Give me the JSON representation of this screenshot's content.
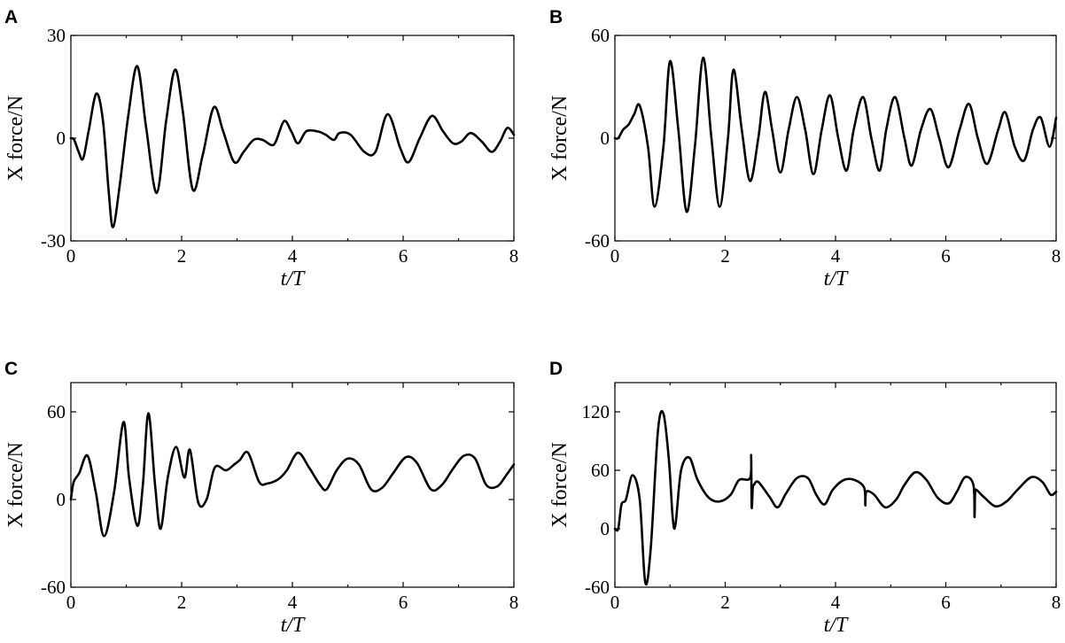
{
  "chart_data": [
    {
      "panel": "A",
      "type": "line",
      "xlabel": "t/T",
      "ylabel": "X force/N",
      "xlim": [
        0,
        8
      ],
      "ylim": [
        -30,
        30
      ],
      "xticks": [
        "0",
        "2",
        "4",
        "6",
        "8"
      ],
      "yticks": [
        "-30",
        "0",
        "30"
      ],
      "series": [
        {
          "x": [
            0,
            0.06,
            0.14,
            0.22,
            0.32,
            0.46,
            0.58,
            0.68,
            0.76,
            0.88,
            1.04,
            1.2,
            1.36,
            1.55,
            1.72,
            1.88,
            2.02,
            2.2,
            2.38,
            2.58,
            2.75,
            2.95,
            3.12,
            3.3,
            3.46,
            3.62,
            3.7,
            3.85,
            3.98,
            4.1,
            4.25,
            4.45,
            4.6,
            4.75,
            4.85,
            5.05,
            5.3,
            5.5,
            5.72,
            5.95,
            6.1,
            6.3,
            6.52,
            6.72,
            6.9,
            7.05,
            7.22,
            7.42,
            7.6,
            7.75,
            7.88,
            8.0
          ],
          "y": [
            0,
            -0.5,
            -4,
            -6,
            2,
            13,
            5,
            -15,
            -26,
            -14,
            7,
            21,
            3,
            -16,
            5,
            20,
            8,
            -15,
            -5,
            9,
            2,
            -7,
            -4,
            -0.5,
            -0.5,
            -2,
            -1,
            5,
            2,
            -1.5,
            2,
            2,
            1,
            -0.5,
            1.5,
            1,
            -4,
            -4,
            7,
            -3,
            -7,
            0,
            6.5,
            2,
            -1.5,
            -1,
            1.5,
            -1,
            -4,
            -1,
            3,
            1
          ]
        }
      ]
    },
    {
      "panel": "B",
      "type": "line",
      "xlabel": "t/T",
      "ylabel": "X force/N",
      "xlim": [
        0,
        8
      ],
      "ylim": [
        -60,
        60
      ],
      "xticks": [
        "0",
        "2",
        "4",
        "6",
        "8"
      ],
      "yticks": [
        "-60",
        "0",
        "60"
      ],
      "series": [
        {
          "x": [
            0,
            0.06,
            0.15,
            0.25,
            0.35,
            0.45,
            0.6,
            0.72,
            0.88,
            1.0,
            1.15,
            1.3,
            1.45,
            1.6,
            1.75,
            1.9,
            2.05,
            2.15,
            2.3,
            2.45,
            2.6,
            2.72,
            2.85,
            3.0,
            3.15,
            3.3,
            3.45,
            3.6,
            3.75,
            3.9,
            4.05,
            4.2,
            4.33,
            4.5,
            4.65,
            4.8,
            4.92,
            5.08,
            5.25,
            5.38,
            5.55,
            5.72,
            5.88,
            6.05,
            6.25,
            6.42,
            6.58,
            6.75,
            6.95,
            7.08,
            7.25,
            7.42,
            7.58,
            7.72,
            7.88,
            8.0
          ],
          "y": [
            0,
            0,
            5,
            8,
            14,
            19,
            -5,
            -40,
            -5,
            45,
            5,
            -43,
            -5,
            47,
            0,
            -40,
            0,
            40,
            5,
            -25,
            0,
            27,
            5,
            -20,
            5,
            24,
            5,
            -21,
            5,
            25,
            0,
            -19,
            5,
            24,
            0,
            -19,
            5,
            24,
            0,
            -16,
            5,
            17,
            0,
            -17,
            5,
            20,
            0,
            -15,
            5,
            15,
            -5,
            -13,
            5,
            12,
            -5,
            12
          ]
        }
      ]
    },
    {
      "panel": "C",
      "type": "line",
      "xlabel": "t/T",
      "ylabel": "X force/N",
      "xlim": [
        0,
        8
      ],
      "ylim": [
        -60,
        80
      ],
      "xticks": [
        "0",
        "2",
        "4",
        "6",
        "8"
      ],
      "yticks": [
        "-60",
        "0",
        "60"
      ],
      "series": [
        {
          "x": [
            0,
            0.05,
            0.15,
            0.3,
            0.45,
            0.6,
            0.78,
            0.95,
            1.05,
            1.2,
            1.3,
            1.4,
            1.52,
            1.62,
            1.75,
            1.9,
            2.05,
            2.15,
            2.3,
            2.45,
            2.6,
            2.8,
            2.95,
            3.05,
            3.2,
            3.4,
            3.55,
            3.75,
            3.9,
            4.1,
            4.3,
            4.5,
            4.62,
            4.8,
            5.0,
            5.2,
            5.42,
            5.62,
            5.82,
            6.05,
            6.25,
            6.5,
            6.7,
            6.9,
            7.1,
            7.3,
            7.5,
            7.7,
            7.85,
            8.0
          ],
          "y": [
            0,
            12,
            18,
            30,
            5,
            -25,
            5,
            53,
            15,
            -18,
            10,
            59,
            10,
            -20,
            15,
            36,
            15,
            34,
            -2,
            0,
            22,
            20,
            24,
            27,
            32,
            12,
            11,
            14,
            20,
            32,
            22,
            10,
            7,
            20,
            28,
            24,
            7,
            8,
            18,
            29,
            25,
            7,
            10,
            21,
            30,
            28,
            10,
            9,
            16,
            24
          ]
        }
      ]
    },
    {
      "panel": "D",
      "type": "line",
      "xlabel": "t/T",
      "ylabel": "X force/N",
      "xlim": [
        0,
        8
      ],
      "ylim": [
        -60,
        150
      ],
      "xticks": [
        "0",
        "2",
        "4",
        "6",
        "8"
      ],
      "yticks": [
        "-60",
        "0",
        "60",
        "120"
      ],
      "series": [
        {
          "x": [
            0,
            0.06,
            0.12,
            0.2,
            0.32,
            0.45,
            0.55,
            0.65,
            0.78,
            0.88,
            0.98,
            1.05,
            1.1,
            1.2,
            1.35,
            1.5,
            1.7,
            1.9,
            2.1,
            2.25,
            2.45,
            2.47,
            2.48,
            2.5,
            2.52,
            2.6,
            2.8,
            2.95,
            3.1,
            3.3,
            3.5,
            3.65,
            3.8,
            3.95,
            4.15,
            4.35,
            4.52,
            4.54,
            4.56,
            4.7,
            4.9,
            5.1,
            5.25,
            5.45,
            5.65,
            5.85,
            6.05,
            6.2,
            6.35,
            6.5,
            6.52,
            6.53,
            6.55,
            6.7,
            6.9,
            7.1,
            7.3,
            7.55,
            7.75,
            7.9,
            8.0
          ],
          "y": [
            0,
            0,
            25,
            30,
            55,
            30,
            -55,
            -20,
            100,
            118,
            70,
            10,
            5,
            60,
            73,
            50,
            32,
            28,
            35,
            50,
            52,
            75,
            22,
            42,
            45,
            48,
            33,
            22,
            36,
            52,
            52,
            35,
            25,
            40,
            50,
            50,
            42,
            24,
            38,
            35,
            22,
            30,
            45,
            58,
            50,
            32,
            26,
            38,
            53,
            45,
            12,
            36,
            40,
            32,
            23,
            28,
            40,
            53,
            48,
            35,
            38
          ]
        }
      ]
    }
  ]
}
